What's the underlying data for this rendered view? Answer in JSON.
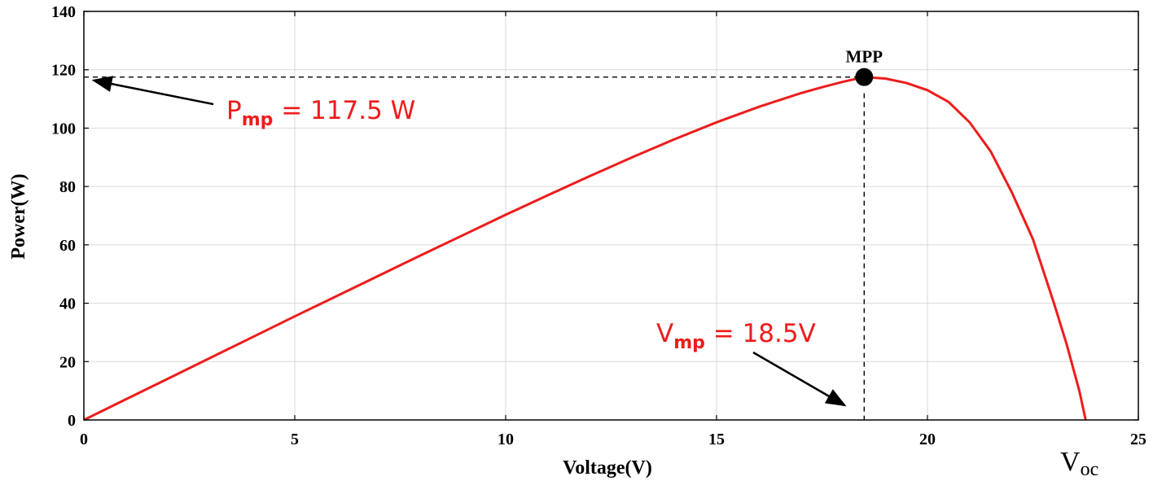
{
  "chart_data": {
    "type": "line",
    "title": "",
    "xlabel": "Voltage(V)",
    "ylabel": "Power(W)",
    "xlim": [
      0,
      25
    ],
    "ylim": [
      0,
      140
    ],
    "xticks": [
      0,
      5,
      10,
      15,
      20,
      25
    ],
    "yticks": [
      0,
      20,
      40,
      60,
      80,
      100,
      120,
      140
    ],
    "grid": true,
    "line_color": "#ee1c1c",
    "series": [
      {
        "x": [
          0,
          1,
          2,
          3,
          4,
          5,
          6,
          7,
          8,
          9,
          10,
          11,
          12,
          13,
          14,
          15,
          16,
          17,
          17.5,
          18,
          18.5,
          19,
          19.5,
          20,
          20.5,
          21,
          21.5,
          22,
          22.5,
          23,
          23.3,
          23.6,
          23.75
        ],
        "y": [
          0,
          7.1,
          14.2,
          21.3,
          28.4,
          35.5,
          42.5,
          49.5,
          56.5,
          63.4,
          70.3,
          77,
          83.6,
          90,
          96.2,
          102,
          107.3,
          112,
          114,
          115.9,
          117.5,
          117,
          115.5,
          113,
          109,
          102,
          92,
          78,
          62,
          40,
          26,
          10,
          0
        ]
      }
    ],
    "mpp": {
      "x": 18.5,
      "y": 117.5,
      "label": "MPP"
    },
    "annotations": {
      "pmp": {
        "main": "P",
        "sub": "mp",
        "rest": " = 117.5 W"
      },
      "vmp": {
        "main": "V",
        "sub": "mp",
        "rest": " = 18.5V"
      },
      "voc": {
        "main": "V",
        "sub": "oc"
      }
    }
  }
}
